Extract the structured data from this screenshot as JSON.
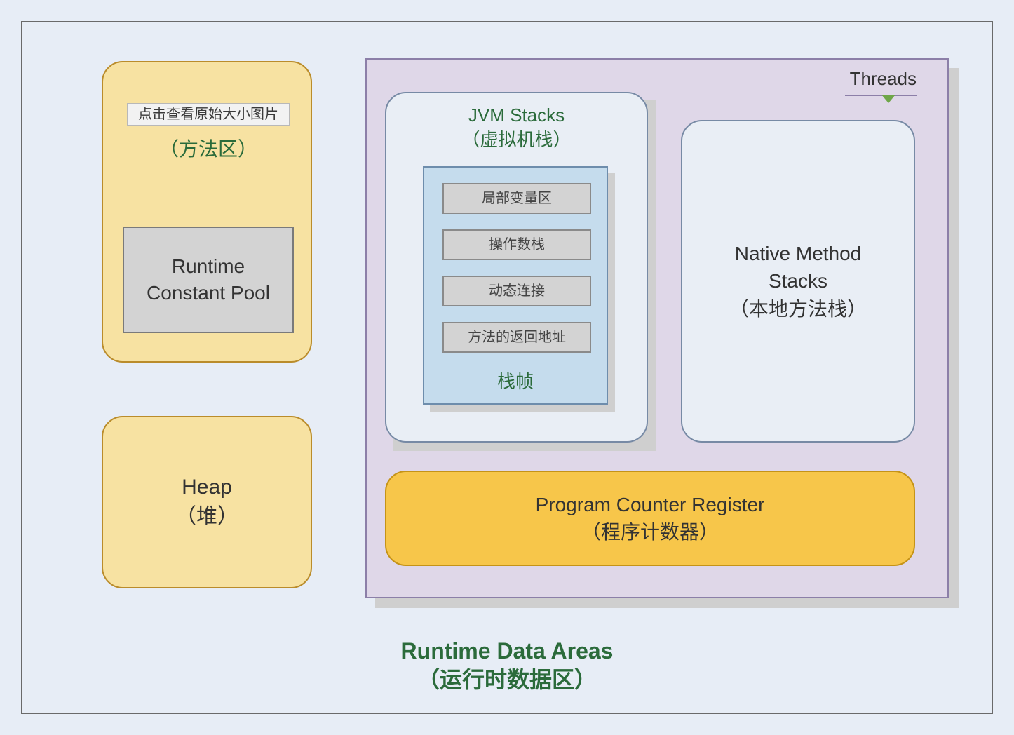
{
  "diagram": {
    "title_en": "Runtime Data Areas",
    "title_cn": "（运行时数据区）",
    "tooltip": "点击查看原始大小图片",
    "colors": {
      "canvas_bg": "#e7edf6",
      "outer_border": "#6a6a6a",
      "yellow_fill": "#f7e2a2",
      "yellow_border": "#ba8c2b",
      "orange_fill": "#f7c64a",
      "orange_border": "#c59317",
      "purple_fill": "#dfd7e8",
      "purple_border": "#8c7fa8",
      "blue_fill": "#e9eef5",
      "blue_border": "#778aa5",
      "lightblue_fill": "#c5dced",
      "lightblue_border": "#6e8dac",
      "gray_fill": "#d3d3d3",
      "gray_border": "#7a7a7a",
      "shadow": "#cfcfcf",
      "title_green": "#2b6b3b",
      "arrow_green": "#6ea648"
    },
    "font_sizes": {
      "title": 32,
      "box_title": 28,
      "sub_title": 26,
      "item": 20
    },
    "border_radius": 30
  },
  "method_area": {
    "subtitle_cn": "（方法区）",
    "rcp_line1": "Runtime",
    "rcp_line2": "Constant Pool"
  },
  "heap": {
    "line1": "Heap",
    "line2": "（堆）"
  },
  "threads": {
    "label": "Threads"
  },
  "jvm_stacks": {
    "title_en": "JVM Stacks",
    "title_cn": "（虚拟机栈）",
    "frame_label": "栈帧",
    "items": {
      "0": "局部变量区",
      "1": "操作数栈",
      "2": "动态连接",
      "3": "方法的返回地址"
    }
  },
  "native": {
    "line1": "Native Method",
    "line2": "Stacks",
    "line3": "（本地方法栈）"
  },
  "pc": {
    "line1": "Program Counter Register",
    "line2": "（程序计数器）"
  }
}
